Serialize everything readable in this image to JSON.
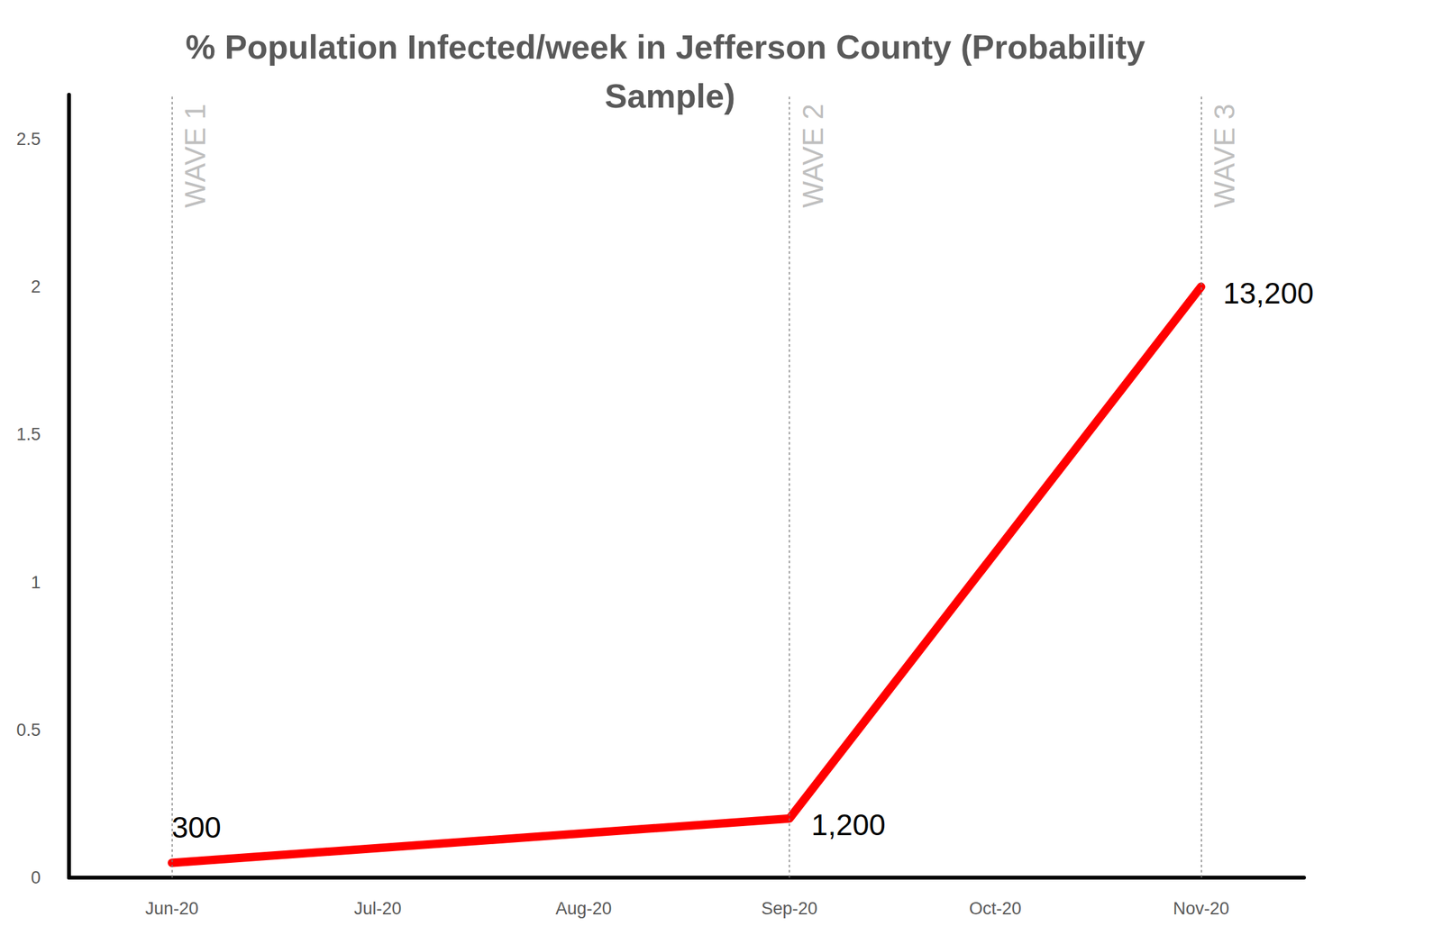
{
  "chart_data": {
    "type": "line",
    "title": "% Population Infected/week in Jefferson County (Probability Sample)",
    "categories": [
      "Jun-20",
      "Jul-20",
      "Aug-20",
      "Sep-20",
      "Oct-20",
      "Nov-20"
    ],
    "values": [
      0.05,
      null,
      null,
      0.2,
      null,
      2.0
    ],
    "color": "#ff0000",
    "ylim": [
      0,
      2.65
    ],
    "yticks": [
      0,
      0.5,
      1,
      1.5,
      2,
      2.5
    ],
    "grid": false,
    "annotations": [
      {
        "type": "point_label",
        "x": "Jun-20",
        "text": "300"
      },
      {
        "type": "point_label",
        "x": "Sep-20",
        "text": "1,200"
      },
      {
        "type": "point_label",
        "x": "Nov-20",
        "text": "13,200"
      },
      {
        "type": "vline",
        "x": "Jun-20",
        "text": "WAVE 1",
        "line_style": "dashed"
      },
      {
        "type": "vline",
        "x": "Sep-20",
        "text": "WAVE 2",
        "line_style": "dashed"
      },
      {
        "type": "vline",
        "x": "Nov-20",
        "text": "WAVE 3",
        "line_style": "dashed"
      }
    ]
  }
}
